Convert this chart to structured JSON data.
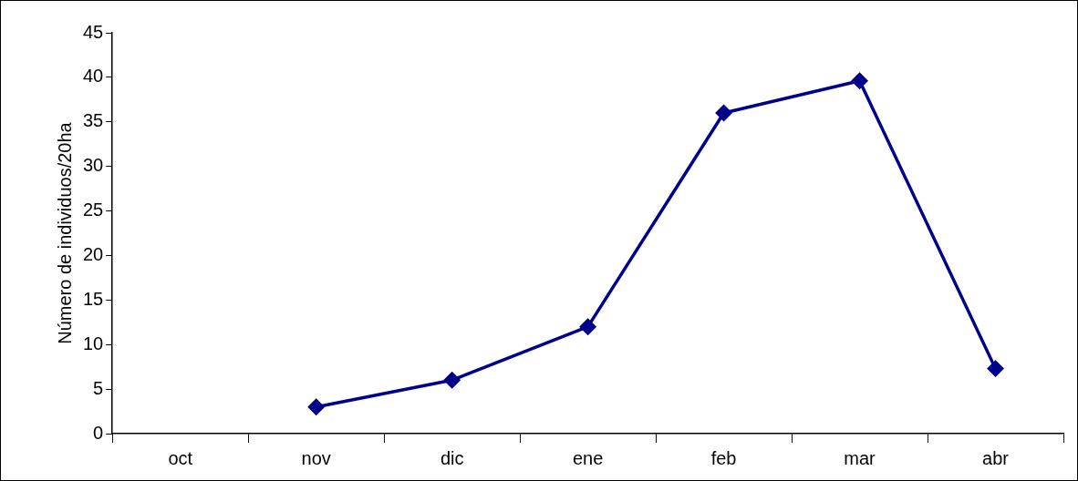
{
  "chart_data": {
    "type": "line",
    "ylabel": "Número de individuos/20ha",
    "categories": [
      "oct",
      "nov",
      "dic",
      "ene",
      "feb",
      "mar",
      "abr"
    ],
    "series": [
      {
        "color": "#00008b",
        "values": [
          null,
          3,
          6,
          12,
          36,
          39.6,
          7.3
        ]
      }
    ],
    "ylim": [
      0,
      45
    ],
    "yticks": [
      0,
      5,
      10,
      15,
      20,
      25,
      30,
      35,
      40,
      45
    ],
    "grid": false,
    "legend": false,
    "marker": "diamond",
    "line_style": "solid"
  }
}
